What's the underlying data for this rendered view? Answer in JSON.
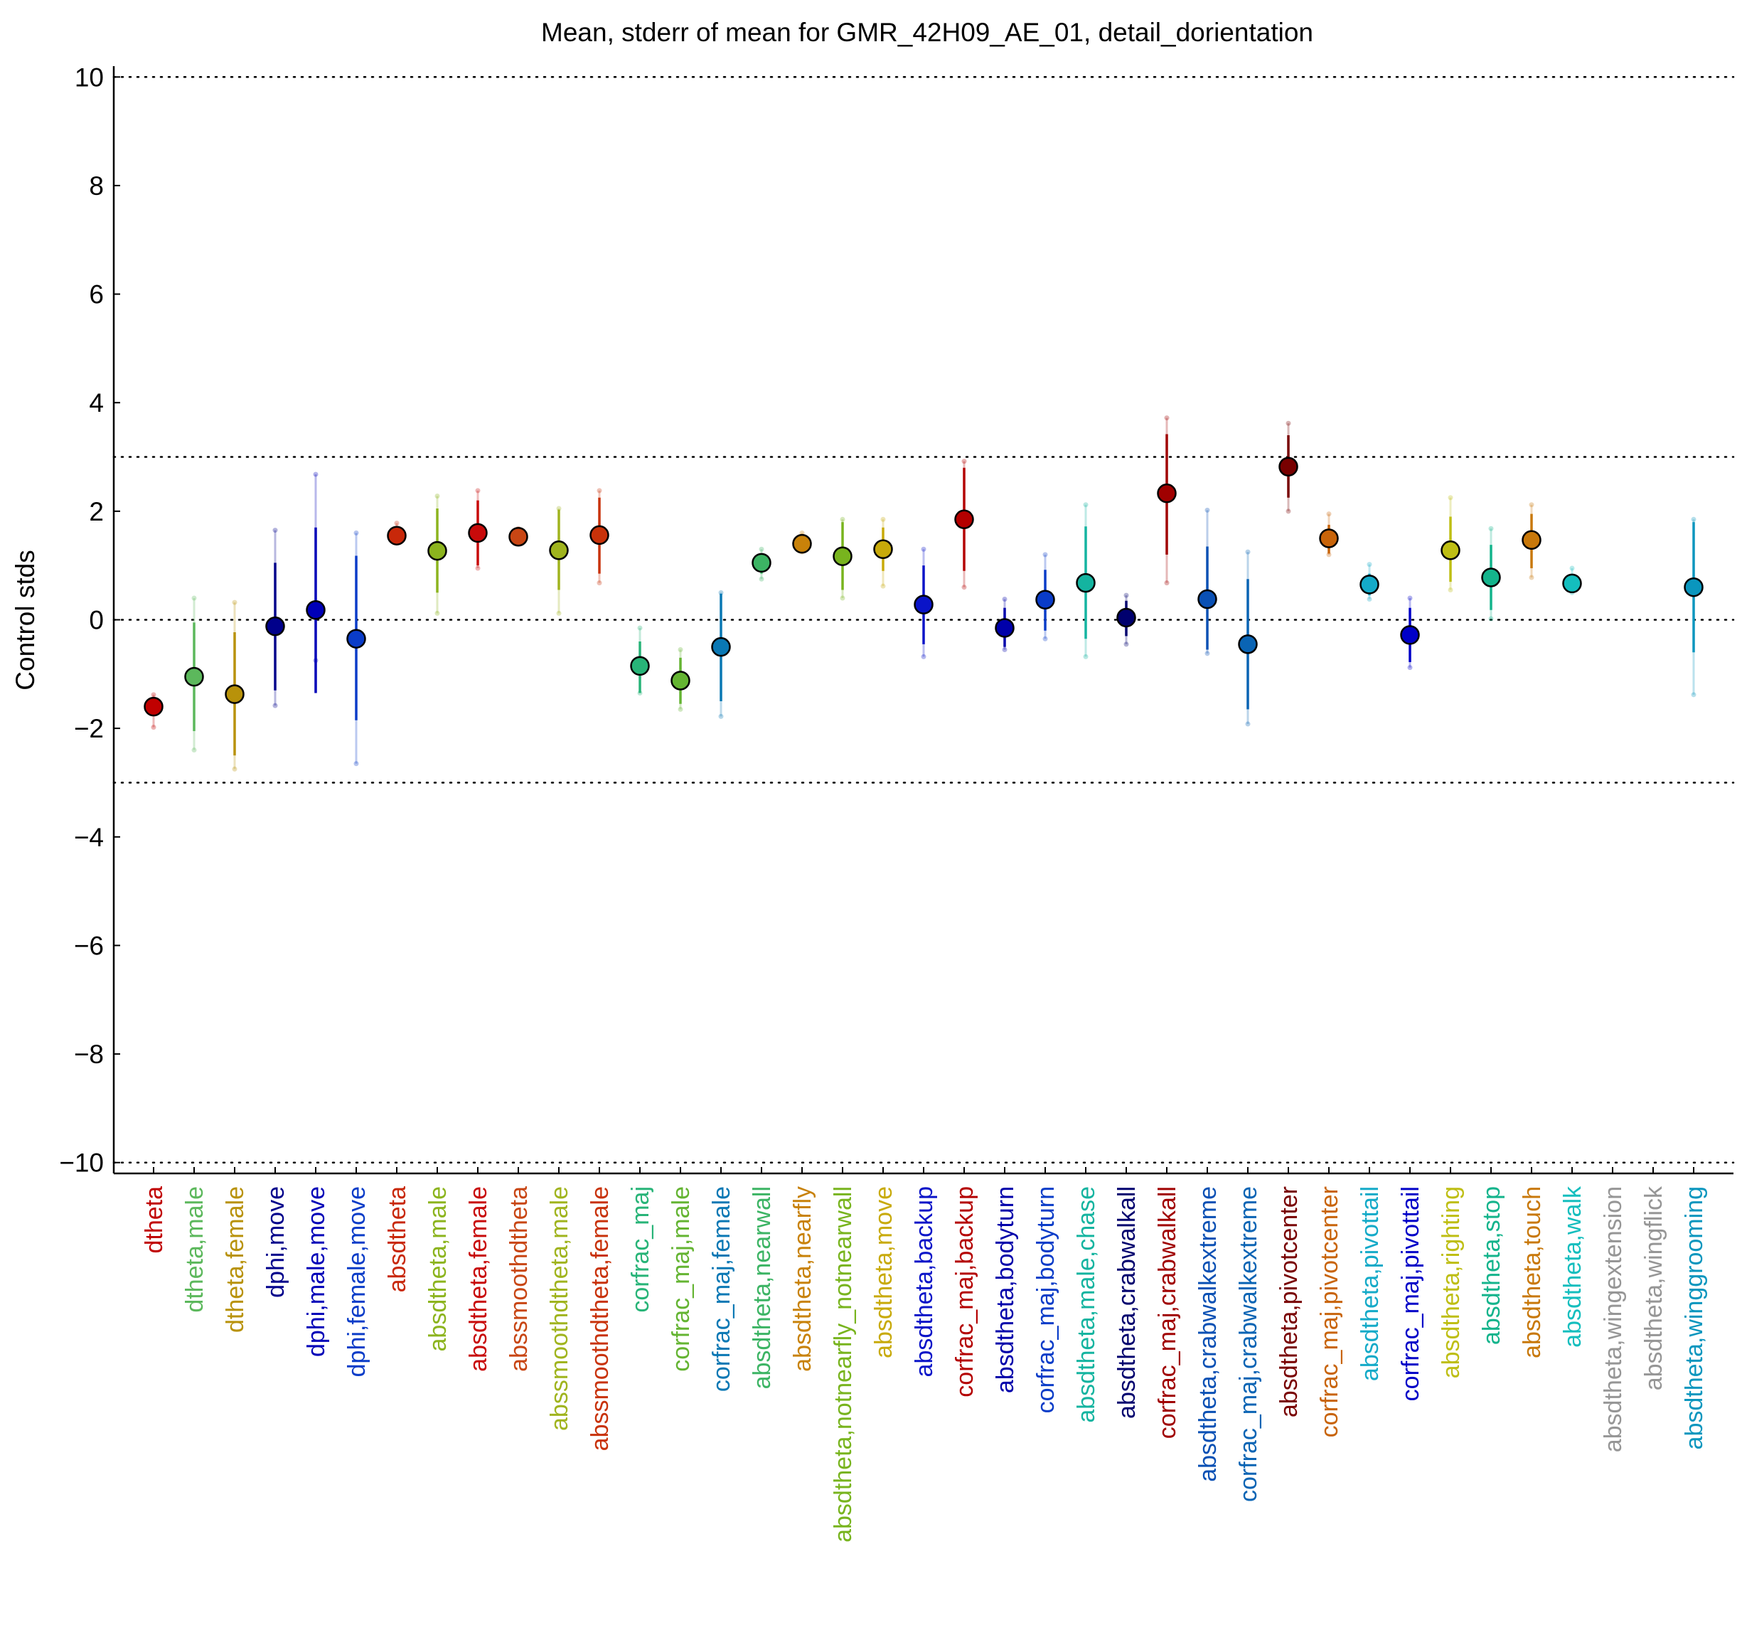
{
  "chart_data": {
    "type": "scatter",
    "title": "Mean, stderr of mean for GMR_42H09_AE_01, detail_dorientation",
    "xlabel": "",
    "ylabel": "Control stds",
    "ylim": [
      -10.2,
      10.2
    ],
    "yticks": [
      {
        "value": 10,
        "label": "10"
      },
      {
        "value": 8,
        "label": "8"
      },
      {
        "value": 6,
        "label": "6"
      },
      {
        "value": 4,
        "label": "4"
      },
      {
        "value": 2,
        "label": "2"
      },
      {
        "value": 0,
        "label": "0"
      },
      {
        "value": -2,
        "label": "−2"
      },
      {
        "value": -4,
        "label": "−4"
      },
      {
        "value": -6,
        "label": "−6"
      },
      {
        "value": -8,
        "label": "−8"
      },
      {
        "value": -10,
        "label": "−10"
      }
    ],
    "reference_lines": [
      10,
      3,
      0,
      -3,
      -10
    ],
    "grid": false,
    "points": [
      {
        "label": "dtheta",
        "mean": -1.6,
        "se_low": -1.7,
        "se_high": -1.45,
        "ext_low": -1.98,
        "ext_high": -1.38,
        "color": "#c00000"
      },
      {
        "label": "dtheta,male",
        "mean": -1.05,
        "se_low": -2.05,
        "se_high": -0.05,
        "ext_low": -2.4,
        "ext_high": 0.4,
        "color": "#5cb85c"
      },
      {
        "label": "dtheta,female",
        "mean": -1.37,
        "se_low": -2.5,
        "se_high": -0.23,
        "ext_low": -2.75,
        "ext_high": 0.32,
        "color": "#b8920a"
      },
      {
        "label": "dphi,move",
        "mean": -0.12,
        "se_low": -1.3,
        "se_high": 1.05,
        "ext_low": -1.58,
        "ext_high": 1.65,
        "color": "#00008b"
      },
      {
        "label": "dphi,male,move",
        "mean": 0.18,
        "se_low": -1.35,
        "se_high": 1.7,
        "ext_low": -0.75,
        "ext_high": 2.68,
        "color": "#0000b8"
      },
      {
        "label": "dphi,female,move",
        "mean": -0.35,
        "se_low": -1.85,
        "se_high": 1.18,
        "ext_low": -2.65,
        "ext_high": 1.6,
        "color": "#0a3cc8"
      },
      {
        "label": "absdtheta",
        "mean": 1.55,
        "se_low": 1.5,
        "se_high": 1.62,
        "ext_low": 1.42,
        "ext_high": 1.78,
        "color": "#c8280a"
      },
      {
        "label": "absdtheta,male",
        "mean": 1.27,
        "se_low": 0.5,
        "se_high": 2.05,
        "ext_low": 0.12,
        "ext_high": 2.28,
        "color": "#8cb41e"
      },
      {
        "label": "absdtheta,female",
        "mean": 1.6,
        "se_low": 1.0,
        "se_high": 2.2,
        "ext_low": 0.95,
        "ext_high": 2.38,
        "color": "#c80a0a"
      },
      {
        "label": "abssmoothdtheta",
        "mean": 1.53,
        "se_low": 1.48,
        "se_high": 1.6,
        "ext_low": 1.42,
        "ext_high": 1.68,
        "color": "#c84614"
      },
      {
        "label": "abssmoothdtheta,male",
        "mean": 1.28,
        "se_low": 0.55,
        "se_high": 2.03,
        "ext_low": 0.12,
        "ext_high": 2.05,
        "color": "#a0b41e"
      },
      {
        "label": "abssmoothdtheta,female",
        "mean": 1.56,
        "se_low": 0.85,
        "se_high": 2.25,
        "ext_low": 0.68,
        "ext_high": 2.38,
        "color": "#c8320a"
      },
      {
        "label": "corfrac_maj",
        "mean": -0.85,
        "se_low": -1.35,
        "se_high": -0.4,
        "ext_low": -1.35,
        "ext_high": -0.15,
        "color": "#28b478"
      },
      {
        "label": "corfrac_maj,male",
        "mean": -1.12,
        "se_low": -1.55,
        "se_high": -0.7,
        "ext_low": -1.65,
        "ext_high": -0.55,
        "color": "#64b432"
      },
      {
        "label": "corfrac_maj,female",
        "mean": -0.5,
        "se_low": -1.5,
        "se_high": 0.48,
        "ext_low": -1.78,
        "ext_high": 0.5,
        "color": "#0a78b4"
      },
      {
        "label": "absdtheta,nearwall",
        "mean": 1.05,
        "se_low": 0.85,
        "se_high": 1.2,
        "ext_low": 0.75,
        "ext_high": 1.3,
        "color": "#3cb464"
      },
      {
        "label": "absdtheta,nearfly",
        "mean": 1.4,
        "se_low": 1.32,
        "se_high": 1.5,
        "ext_low": 1.25,
        "ext_high": 1.6,
        "color": "#c8820a"
      },
      {
        "label": "absdtheta,notnearfly_notnearwall",
        "mean": 1.17,
        "se_low": 0.55,
        "se_high": 1.8,
        "ext_low": 0.4,
        "ext_high": 1.85,
        "color": "#78b41e"
      },
      {
        "label": "absdtheta,move",
        "mean": 1.3,
        "se_low": 0.9,
        "se_high": 1.7,
        "ext_low": 0.62,
        "ext_high": 1.85,
        "color": "#c8aa0a"
      },
      {
        "label": "absdtheta,backup",
        "mean": 0.28,
        "se_low": -0.45,
        "se_high": 1.0,
        "ext_low": -0.68,
        "ext_high": 1.3,
        "color": "#0a14c8"
      },
      {
        "label": "corfrac_maj,backup",
        "mean": 1.85,
        "se_low": 0.9,
        "se_high": 2.8,
        "ext_low": 0.6,
        "ext_high": 2.92,
        "color": "#b40000"
      },
      {
        "label": "absdtheta,bodyturn",
        "mean": -0.15,
        "se_low": -0.5,
        "se_high": 0.22,
        "ext_low": -0.55,
        "ext_high": 0.38,
        "color": "#0000aa"
      },
      {
        "label": "corfrac_maj,bodyturn",
        "mean": 0.37,
        "se_low": -0.2,
        "se_high": 0.92,
        "ext_low": -0.35,
        "ext_high": 1.2,
        "color": "#0a3cc8"
      },
      {
        "label": "absdtheta,male,chase",
        "mean": 0.68,
        "se_low": -0.35,
        "se_high": 1.72,
        "ext_low": -0.68,
        "ext_high": 2.12,
        "color": "#14b4a0"
      },
      {
        "label": "absdtheta,crabwalkall",
        "mean": 0.04,
        "se_low": -0.3,
        "se_high": 0.35,
        "ext_low": -0.45,
        "ext_high": 0.45,
        "color": "#00006e"
      },
      {
        "label": "corfrac_maj,crabwalkall",
        "mean": 2.33,
        "se_low": 1.2,
        "se_high": 3.42,
        "ext_low": 0.68,
        "ext_high": 3.72,
        "color": "#a00000"
      },
      {
        "label": "absdtheta,crabwalkextreme",
        "mean": 0.38,
        "se_low": -0.55,
        "se_high": 1.35,
        "ext_low": -0.62,
        "ext_high": 2.02,
        "color": "#0a50b4"
      },
      {
        "label": "corfrac_maj,crabwalkextreme",
        "mean": -0.45,
        "se_low": -1.65,
        "se_high": 0.75,
        "ext_low": -1.92,
        "ext_high": 1.25,
        "color": "#0a64b4"
      },
      {
        "label": "absdtheta,pivotcenter",
        "mean": 2.82,
        "se_low": 2.25,
        "se_high": 3.4,
        "ext_low": 2.0,
        "ext_high": 3.62,
        "color": "#780000"
      },
      {
        "label": "corfrac_maj,pivotcenter",
        "mean": 1.5,
        "se_low": 1.22,
        "se_high": 1.75,
        "ext_low": 1.2,
        "ext_high": 1.95,
        "color": "#c8640a"
      },
      {
        "label": "absdtheta,pivottail",
        "mean": 0.65,
        "se_low": 0.45,
        "se_high": 0.85,
        "ext_low": 0.38,
        "ext_high": 1.02,
        "color": "#14aac8"
      },
      {
        "label": "corfrac_maj,pivottail",
        "mean": -0.28,
        "se_low": -0.78,
        "se_high": 0.22,
        "ext_low": -0.88,
        "ext_high": 0.4,
        "color": "#0000c8"
      },
      {
        "label": "absdtheta,righting",
        "mean": 1.28,
        "se_low": 0.7,
        "se_high": 1.9,
        "ext_low": 0.55,
        "ext_high": 2.25,
        "color": "#bebe14"
      },
      {
        "label": "absdtheta,stop",
        "mean": 0.78,
        "se_low": 0.18,
        "se_high": 1.38,
        "ext_low": 0.02,
        "ext_high": 1.68,
        "color": "#14b48c"
      },
      {
        "label": "absdtheta,touch",
        "mean": 1.47,
        "se_low": 0.95,
        "se_high": 1.95,
        "ext_low": 0.78,
        "ext_high": 2.12,
        "color": "#c8780a"
      },
      {
        "label": "absdtheta,walk",
        "mean": 0.67,
        "se_low": 0.55,
        "se_high": 0.8,
        "ext_low": 0.5,
        "ext_high": 0.95,
        "color": "#14bebe"
      },
      {
        "label": "absdtheta,wingextension",
        "mean": null,
        "color": "#969696"
      },
      {
        "label": "absdtheta,wingflick",
        "mean": null,
        "color": "#969696"
      },
      {
        "label": "absdtheta,winggrooming",
        "mean": 0.6,
        "se_low": -0.6,
        "se_high": 1.8,
        "ext_low": -1.38,
        "ext_high": 1.85,
        "color": "#0a96be"
      }
    ]
  }
}
